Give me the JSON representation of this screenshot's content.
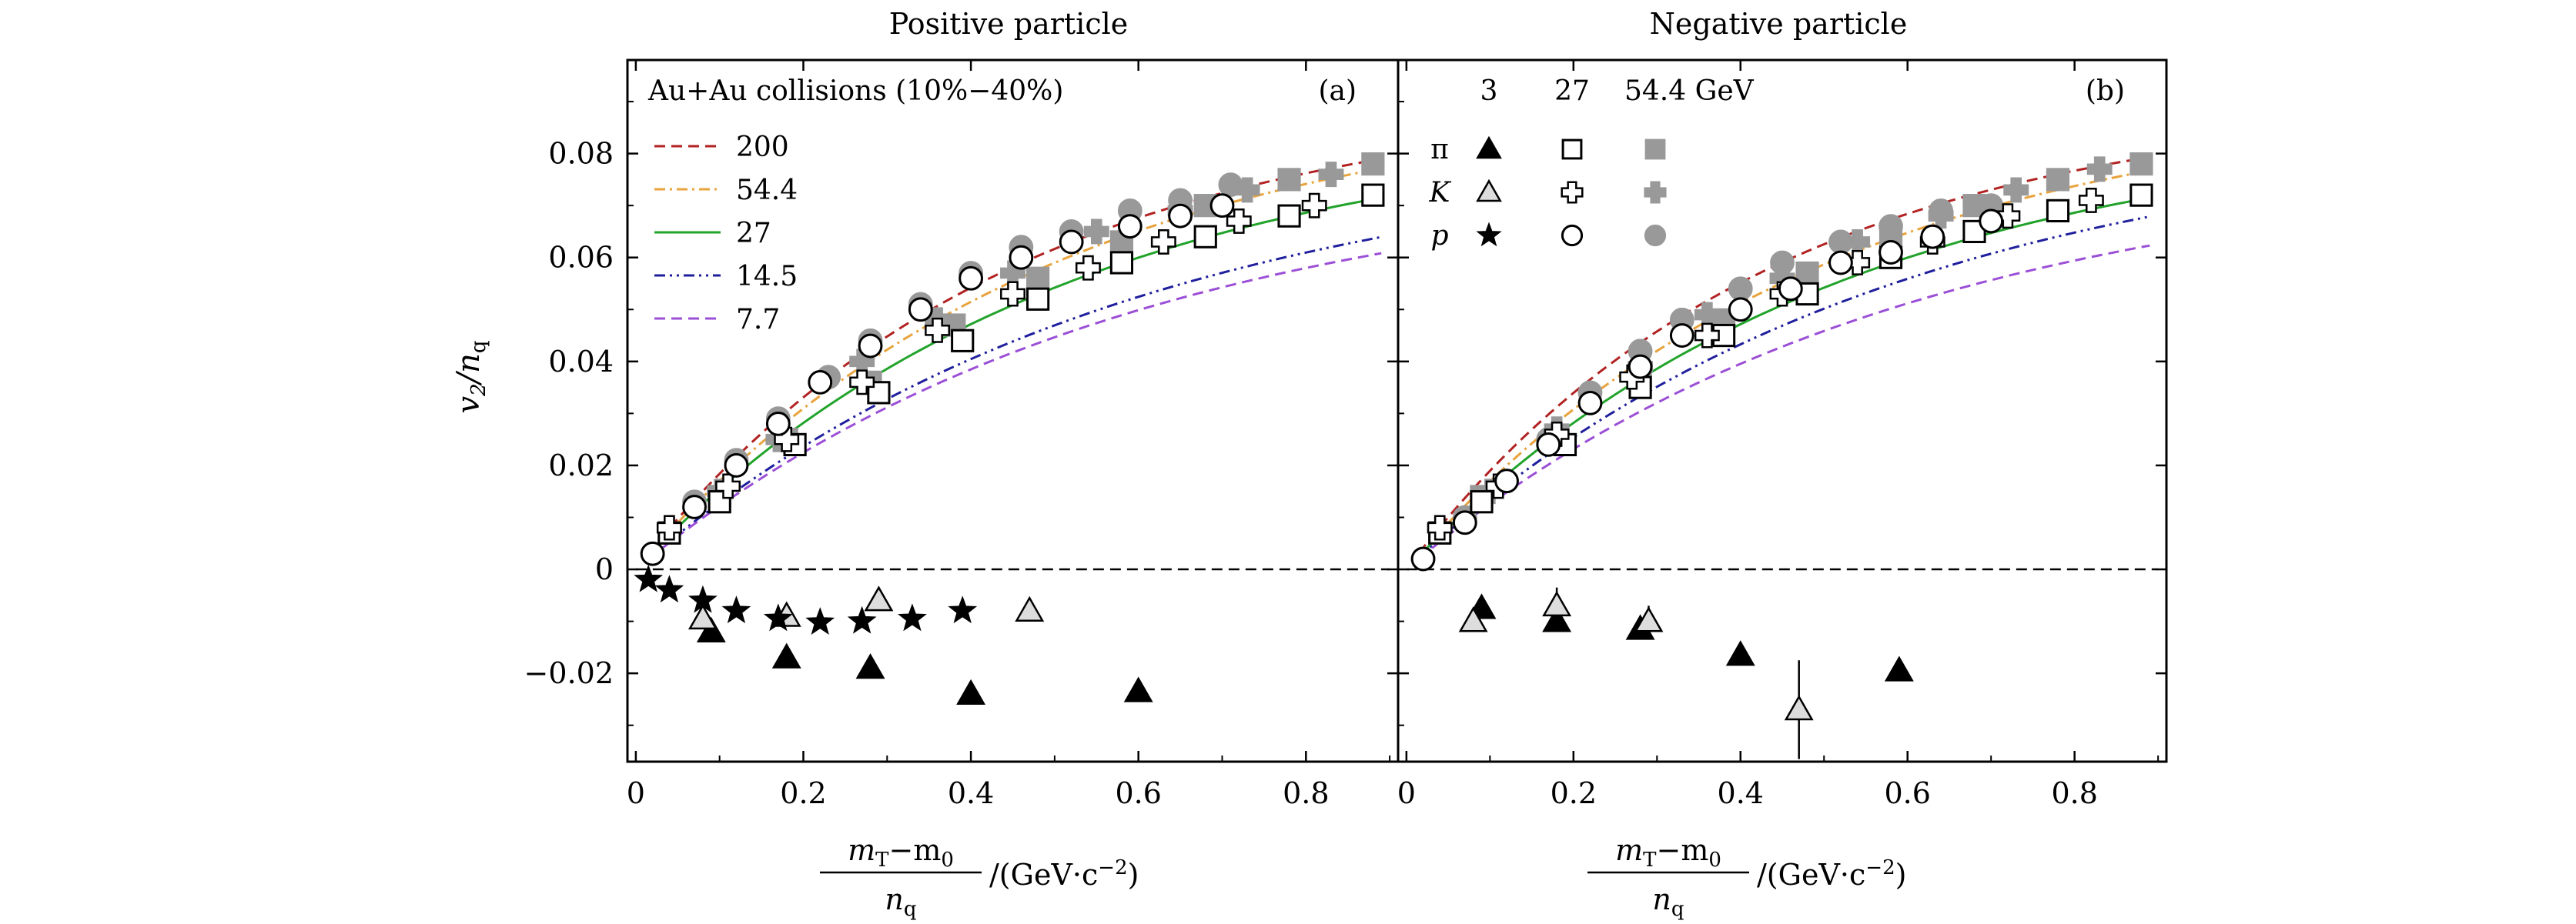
{
  "chart_data": [
    {
      "id": "a",
      "type": "scatter",
      "title": "Positive particle",
      "panel_label": "(a)",
      "legend_title": "Au+Au collisions (10%−40%)",
      "ylabel_main": "v",
      "ylabel_sub2": "2",
      "ylabel_sep": "/n",
      "ylabel_sub": "q",
      "xlabel_num": "m",
      "xlabel_num_sub": "T",
      "xlabel_num_rest": "−m",
      "xlabel_num_sub2": "0",
      "xlabel_den": "n",
      "xlabel_den_sub": "q",
      "xlabel_unit": "/(GeV·c",
      "xlabel_unit_exp": "−2",
      "xlabel_unit_close": ")",
      "xlim": [
        -0.01,
        0.91
      ],
      "ylim": [
        -0.037,
        0.098
      ],
      "xticks": [
        "0",
        "0.2",
        "0.4",
        "0.6",
        "0.8"
      ],
      "xtick_values": [
        0,
        0.2,
        0.4,
        0.6,
        0.8
      ],
      "yticks": [
        "−0.02",
        "0",
        "0.02",
        "0.04",
        "0.06",
        "0.08"
      ],
      "ytick_values": [
        -0.02,
        0,
        0.02,
        0.04,
        0.06,
        0.08
      ],
      "curves": [
        {
          "name": "200",
          "color": "#b22222",
          "style": "dashed",
          "a": 0.0913,
          "k": 2.25
        },
        {
          "name": "54.4",
          "color": "#e8a33d",
          "style": "dashdot",
          "a": 0.092,
          "k": 2.05
        },
        {
          "name": "27",
          "color": "#22a32b",
          "style": "solid",
          "a": 0.0865,
          "k": 1.97
        },
        {
          "name": "14.5",
          "color": "#1f1f9e",
          "style": "dashdotdot",
          "a": 0.082,
          "k": 1.7
        },
        {
          "name": "7.7",
          "color": "#9b4fd6",
          "style": "dashed",
          "a": 0.078,
          "k": 1.7
        }
      ],
      "markers": [
        {
          "species": "pi",
          "energy": "3",
          "shape": "triangle",
          "fill": "black",
          "points": [
            [
              0.09,
              -0.012
            ],
            [
              0.18,
              -0.017
            ],
            [
              0.28,
              -0.019
            ],
            [
              0.4,
              -0.024
            ],
            [
              0.6,
              -0.0235
            ]
          ]
        },
        {
          "species": "K",
          "energy": "3",
          "shape": "triangle",
          "fill": "open",
          "points": [
            [
              0.08,
              -0.0095
            ],
            [
              0.18,
              -0.009
            ],
            [
              0.29,
              -0.006
            ],
            [
              0.47,
              -0.008
            ]
          ]
        },
        {
          "species": "p",
          "energy": "3",
          "shape": "star",
          "fill": "black",
          "points": [
            [
              0.015,
              -0.002
            ],
            [
              0.04,
              -0.004
            ],
            [
              0.08,
              -0.006
            ],
            [
              0.12,
              -0.008
            ],
            [
              0.17,
              -0.0095
            ],
            [
              0.22,
              -0.0102
            ],
            [
              0.27,
              -0.01
            ],
            [
              0.33,
              -0.0095
            ],
            [
              0.39,
              -0.008
            ]
          ]
        },
        {
          "species": "pi",
          "energy": "54.4",
          "shape": "square",
          "fill": "gray",
          "points": [
            [
              0.04,
              0.007
            ],
            [
              0.1,
              0.014
            ],
            [
              0.18,
              0.025
            ],
            [
              0.28,
              0.036
            ],
            [
              0.38,
              0.047
            ],
            [
              0.48,
              0.056
            ],
            [
              0.58,
              0.063
            ],
            [
              0.68,
              0.07
            ],
            [
              0.78,
              0.075
            ],
            [
              0.88,
              0.078
            ]
          ]
        },
        {
          "species": "K",
          "energy": "54.4",
          "shape": "plus",
          "fill": "gray",
          "points": [
            [
              0.04,
              0.008
            ],
            [
              0.1,
              0.015
            ],
            [
              0.17,
              0.025
            ],
            [
              0.27,
              0.04
            ],
            [
              0.36,
              0.048
            ],
            [
              0.45,
              0.057
            ],
            [
              0.55,
              0.065
            ],
            [
              0.65,
              0.069
            ],
            [
              0.73,
              0.073
            ],
            [
              0.83,
              0.076
            ]
          ]
        },
        {
          "species": "p",
          "energy": "54.4",
          "shape": "circle",
          "fill": "gray",
          "points": [
            [
              0.02,
              0.003
            ],
            [
              0.07,
              0.013
            ],
            [
              0.12,
              0.021
            ],
            [
              0.17,
              0.029
            ],
            [
              0.23,
              0.037
            ],
            [
              0.28,
              0.044
            ],
            [
              0.34,
              0.051
            ],
            [
              0.4,
              0.057
            ],
            [
              0.46,
              0.062
            ],
            [
              0.52,
              0.065
            ],
            [
              0.59,
              0.069
            ],
            [
              0.65,
              0.071
            ],
            [
              0.71,
              0.074
            ]
          ]
        },
        {
          "species": "pi",
          "energy": "27",
          "shape": "square",
          "fill": "open",
          "points": [
            [
              0.04,
              0.007
            ],
            [
              0.1,
              0.013
            ],
            [
              0.19,
              0.024
            ],
            [
              0.29,
              0.034
            ],
            [
              0.39,
              0.044
            ],
            [
              0.48,
              0.052
            ],
            [
              0.58,
              0.059
            ],
            [
              0.68,
              0.064
            ],
            [
              0.78,
              0.068
            ],
            [
              0.88,
              0.072
            ]
          ]
        },
        {
          "species": "K",
          "energy": "27",
          "shape": "plus",
          "fill": "open",
          "points": [
            [
              0.04,
              0.008
            ],
            [
              0.11,
              0.016
            ],
            [
              0.18,
              0.025
            ],
            [
              0.27,
              0.036
            ],
            [
              0.36,
              0.046
            ],
            [
              0.45,
              0.053
            ],
            [
              0.54,
              0.058
            ],
            [
              0.63,
              0.063
            ],
            [
              0.72,
              0.067
            ],
            [
              0.81,
              0.07
            ]
          ]
        },
        {
          "species": "p",
          "energy": "27",
          "shape": "circle",
          "fill": "open",
          "points": [
            [
              0.02,
              0.003
            ],
            [
              0.07,
              0.012
            ],
            [
              0.12,
              0.02
            ],
            [
              0.17,
              0.028
            ],
            [
              0.22,
              0.036
            ],
            [
              0.28,
              0.043
            ],
            [
              0.34,
              0.05
            ],
            [
              0.4,
              0.056
            ],
            [
              0.46,
              0.06
            ],
            [
              0.52,
              0.063
            ],
            [
              0.59,
              0.066
            ],
            [
              0.65,
              0.068
            ],
            [
              0.7,
              0.07
            ]
          ]
        }
      ]
    },
    {
      "id": "b",
      "type": "scatter",
      "title": "Negative particle",
      "panel_label": "(b)",
      "marker_legend": {
        "energies": [
          "3",
          "27",
          "54.4 GeV"
        ],
        "rows": [
          {
            "species": "π",
            "shape": "triangle-square"
          },
          {
            "species": "K",
            "shape": "triangle-plus"
          },
          {
            "species": "p",
            "shape": "star-circle"
          }
        ]
      },
      "xlabel_num": "m",
      "xlabel_num_sub": "T",
      "xlabel_num_rest": "−m",
      "xlabel_num_sub2": "0",
      "xlabel_den": "n",
      "xlabel_den_sub": "q",
      "xlabel_unit": "/(GeV·c",
      "xlabel_unit_exp": "−2",
      "xlabel_unit_close": ")",
      "xlim": [
        -0.01,
        0.91
      ],
      "ylim": [
        -0.037,
        0.098
      ],
      "xticks": [
        "0",
        "0.2",
        "0.4",
        "0.6",
        "0.8"
      ],
      "xtick_values": [
        0,
        0.2,
        0.4,
        0.6,
        0.8
      ],
      "curves": [
        {
          "color": "#b22222",
          "style": "dashed",
          "a": 0.0905,
          "k": 2.35
        },
        {
          "color": "#e8a33d",
          "style": "dashdot",
          "a": 0.0915,
          "k": 2.05
        },
        {
          "color": "#22a32b",
          "style": "solid",
          "a": 0.0865,
          "k": 1.97
        },
        {
          "color": "#1f1f9e",
          "style": "dashdotdot",
          "a": 0.086,
          "k": 1.75
        },
        {
          "color": "#9b4fd6",
          "style": "dashed",
          "a": 0.0795,
          "k": 1.72
        }
      ],
      "markers": [
        {
          "species": "pi",
          "energy": "3",
          "shape": "triangle",
          "fill": "black",
          "points": [
            [
              0.09,
              -0.0075
            ],
            [
              0.18,
              -0.01
            ],
            [
              0.28,
              -0.0115
            ],
            [
              0.4,
              -0.0165
            ],
            [
              0.59,
              -0.0195
            ]
          ]
        },
        {
          "species": "K",
          "energy": "3",
          "shape": "triangle",
          "fill": "open",
          "points": [
            [
              0.08,
              -0.01,
              0.002
            ],
            [
              0.18,
              -0.007,
              0.0035
            ],
            [
              0.29,
              -0.01,
              0.003
            ],
            [
              0.47,
              -0.027,
              0.0095
            ]
          ]
        },
        {
          "species": "pi",
          "energy": "54.4",
          "shape": "square",
          "fill": "gray",
          "points": [
            [
              0.04,
              0.007
            ],
            [
              0.09,
              0.014
            ],
            [
              0.18,
              0.025
            ],
            [
              0.28,
              0.037
            ],
            [
              0.38,
              0.048
            ],
            [
              0.48,
              0.057
            ],
            [
              0.58,
              0.064
            ],
            [
              0.68,
              0.07
            ],
            [
              0.78,
              0.075
            ],
            [
              0.88,
              0.078
            ]
          ]
        },
        {
          "species": "K",
          "energy": "54.4",
          "shape": "plus",
          "fill": "gray",
          "points": [
            [
              0.04,
              0.008
            ],
            [
              0.1,
              0.015
            ],
            [
              0.18,
              0.027
            ],
            [
              0.28,
              0.039
            ],
            [
              0.36,
              0.049
            ],
            [
              0.45,
              0.056
            ],
            [
              0.54,
              0.063
            ],
            [
              0.64,
              0.068
            ],
            [
              0.73,
              0.073
            ],
            [
              0.83,
              0.077
            ]
          ]
        },
        {
          "species": "p",
          "energy": "54.4",
          "shape": "circle",
          "fill": "gray",
          "points": [
            [
              0.02,
              0.002
            ],
            [
              0.07,
              0.01
            ],
            [
              0.12,
              0.017
            ],
            [
              0.17,
              0.025
            ],
            [
              0.22,
              0.034
            ],
            [
              0.28,
              0.042
            ],
            [
              0.33,
              0.048
            ],
            [
              0.4,
              0.054
            ],
            [
              0.45,
              0.059
            ],
            [
              0.52,
              0.063
            ],
            [
              0.58,
              0.066
            ],
            [
              0.64,
              0.069
            ],
            [
              0.7,
              0.07
            ]
          ]
        },
        {
          "species": "pi",
          "energy": "27",
          "shape": "square",
          "fill": "open",
          "points": [
            [
              0.04,
              0.007
            ],
            [
              0.09,
              0.013
            ],
            [
              0.19,
              0.024
            ],
            [
              0.28,
              0.035
            ],
            [
              0.38,
              0.045
            ],
            [
              0.48,
              0.053
            ],
            [
              0.58,
              0.06
            ],
            [
              0.68,
              0.065
            ],
            [
              0.78,
              0.069
            ],
            [
              0.88,
              0.072
            ]
          ]
        },
        {
          "species": "K",
          "energy": "27",
          "shape": "plus",
          "fill": "open",
          "points": [
            [
              0.04,
              0.008
            ],
            [
              0.11,
              0.016
            ],
            [
              0.18,
              0.026
            ],
            [
              0.27,
              0.037
            ],
            [
              0.36,
              0.045
            ],
            [
              0.45,
              0.053
            ],
            [
              0.54,
              0.059
            ],
            [
              0.63,
              0.063
            ],
            [
              0.72,
              0.068
            ],
            [
              0.82,
              0.071
            ]
          ]
        },
        {
          "species": "p",
          "energy": "27",
          "shape": "circle",
          "fill": "open",
          "points": [
            [
              0.02,
              0.002
            ],
            [
              0.07,
              0.009
            ],
            [
              0.12,
              0.017
            ],
            [
              0.17,
              0.024
            ],
            [
              0.22,
              0.032
            ],
            [
              0.28,
              0.039
            ],
            [
              0.33,
              0.045
            ],
            [
              0.4,
              0.05
            ],
            [
              0.46,
              0.054
            ],
            [
              0.52,
              0.059
            ],
            [
              0.58,
              0.061
            ],
            [
              0.63,
              0.064
            ],
            [
              0.7,
              0.067
            ]
          ]
        }
      ]
    }
  ],
  "legend_curves": [
    "200",
    "54.4",
    "27",
    "14.5",
    "7.7"
  ],
  "colors": {
    "gray": "#999999",
    "black": "#000000"
  }
}
